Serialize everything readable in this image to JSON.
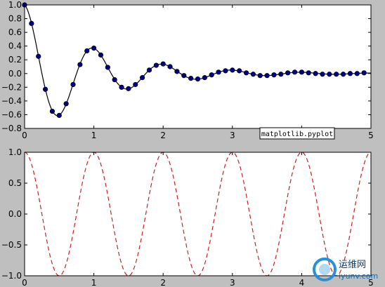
{
  "chart_data": [
    {
      "type": "line",
      "title": "",
      "xlabel": "",
      "ylabel": "",
      "xlim": [
        0,
        5
      ],
      "ylim": [
        -0.8,
        1.0
      ],
      "xticks": [
        "0",
        "1",
        "2",
        "3",
        "4",
        "5"
      ],
      "yticks": [
        "−0.8",
        "−0.6",
        "−0.4",
        "−0.2",
        "0.0",
        "0.2",
        "0.4",
        "0.6",
        "0.8",
        "1.0"
      ],
      "grid": false,
      "series": [
        {
          "style": "solid line with circle markers",
          "line_color": "#000000",
          "marker_color": "#000080",
          "x": [
            0.0,
            0.1,
            0.2,
            0.3,
            0.4,
            0.5,
            0.6,
            0.7,
            0.8,
            0.9,
            1.0,
            1.1,
            1.2,
            1.3,
            1.4,
            1.5,
            1.6,
            1.7,
            1.8,
            1.9,
            2.0,
            2.1,
            2.2,
            2.3,
            2.4,
            2.5,
            2.6,
            2.7,
            2.8,
            2.9,
            3.0,
            3.1,
            3.2,
            3.3,
            3.4,
            3.5,
            3.6,
            3.7,
            3.8,
            3.9,
            4.0,
            4.1,
            4.2,
            4.3,
            4.4,
            4.5,
            4.6,
            4.7,
            4.8,
            4.9
          ],
          "y": [
            1.0,
            0.73,
            0.25,
            -0.23,
            -0.55,
            -0.61,
            -0.44,
            -0.16,
            0.13,
            0.33,
            0.37,
            0.27,
            0.09,
            -0.09,
            -0.2,
            -0.22,
            -0.16,
            -0.06,
            0.05,
            0.12,
            0.14,
            0.1,
            0.03,
            -0.03,
            -0.07,
            -0.08,
            -0.06,
            -0.02,
            0.02,
            0.04,
            0.05,
            0.04,
            0.01,
            -0.01,
            -0.03,
            -0.03,
            -0.02,
            -0.01,
            0.01,
            0.02,
            0.02,
            0.01,
            0.0,
            -0.01,
            -0.01,
            -0.01,
            -0.01,
            0.0,
            0.0,
            0.01
          ]
        }
      ],
      "annotation": {
        "text": "matplotlib.pyplot",
        "x": 3.45,
        "y": -0.85
      }
    },
    {
      "type": "line",
      "title": "",
      "xlabel": "",
      "ylabel": "",
      "xlim": [
        0,
        5
      ],
      "ylim": [
        -1.0,
        1.0
      ],
      "xticks": [
        "0",
        "1",
        "2",
        "3",
        "4",
        "5"
      ],
      "yticks": [
        "−1.0",
        "−0.5",
        "0.0",
        "0.5",
        "1.0"
      ],
      "grid": false,
      "series": [
        {
          "style": "dashed",
          "color": "#cc2222",
          "function": "cos(2*pi*x)",
          "x_range": [
            0,
            5
          ]
        }
      ]
    }
  ],
  "watermark": {
    "text": "运维网",
    "sub": "iyunv.com"
  }
}
